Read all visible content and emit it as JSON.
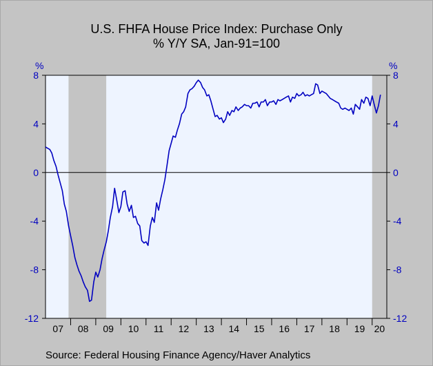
{
  "title": "U.S. FHFA House Price Index: Purchase Only",
  "subtitle": "% Y/Y     SA, Jan-91=100",
  "source": "Source:  Federal Housing Finance Agency/Haver Analytics",
  "chart_data": {
    "type": "line",
    "title": "U.S. FHFA House Price Index: Purchase Only",
    "subtitle": "% Y/Y     SA, Jan-91=100",
    "left_unit": "%",
    "right_unit": "%",
    "ylim": [
      -12,
      8
    ],
    "yticks": [
      8,
      4,
      0,
      -4,
      -8,
      -12
    ],
    "xlim": [
      2007.0,
      2020.583
    ],
    "xtick_labels": [
      "07",
      "08",
      "09",
      "10",
      "11",
      "12",
      "13",
      "14",
      "15",
      "16",
      "17",
      "18",
      "19",
      "20"
    ],
    "grid": false,
    "zero_line": true,
    "recessions": [
      [
        2007.917,
        2009.417
      ],
      [
        2020.0,
        2020.583
      ]
    ],
    "colors": {
      "line": "#0000c0",
      "plot_bg": "#eef4ff",
      "recession": "#c4c4c4",
      "axis_text": "#0000c0"
    },
    "series": [
      {
        "points": [
          [
            2007.0,
            2.1
          ],
          [
            2007.08,
            2.0
          ],
          [
            2007.17,
            1.9
          ],
          [
            2007.25,
            1.6
          ],
          [
            2007.33,
            1.0
          ],
          [
            2007.42,
            0.5
          ],
          [
            2007.5,
            -0.2
          ],
          [
            2007.58,
            -0.8
          ],
          [
            2007.67,
            -1.5
          ],
          [
            2007.75,
            -2.6
          ],
          [
            2007.83,
            -3.2
          ],
          [
            2007.92,
            -4.4
          ],
          [
            2008.0,
            -5.2
          ],
          [
            2008.08,
            -6.0
          ],
          [
            2008.17,
            -7.0
          ],
          [
            2008.25,
            -7.6
          ],
          [
            2008.33,
            -8.1
          ],
          [
            2008.42,
            -8.5
          ],
          [
            2008.5,
            -9.0
          ],
          [
            2008.58,
            -9.4
          ],
          [
            2008.67,
            -9.7
          ],
          [
            2008.75,
            -10.6
          ],
          [
            2008.83,
            -10.5
          ],
          [
            2008.92,
            -9.0
          ],
          [
            2009.0,
            -8.2
          ],
          [
            2009.08,
            -8.6
          ],
          [
            2009.17,
            -8.0
          ],
          [
            2009.25,
            -7.1
          ],
          [
            2009.33,
            -6.4
          ],
          [
            2009.42,
            -5.7
          ],
          [
            2009.5,
            -4.8
          ],
          [
            2009.58,
            -3.7
          ],
          [
            2009.67,
            -2.8
          ],
          [
            2009.75,
            -1.3
          ],
          [
            2009.83,
            -2.2
          ],
          [
            2009.92,
            -3.3
          ],
          [
            2010.0,
            -2.8
          ],
          [
            2010.08,
            -1.6
          ],
          [
            2010.17,
            -1.5
          ],
          [
            2010.25,
            -2.6
          ],
          [
            2010.33,
            -3.2
          ],
          [
            2010.42,
            -2.7
          ],
          [
            2010.5,
            -3.7
          ],
          [
            2010.58,
            -3.6
          ],
          [
            2010.67,
            -4.2
          ],
          [
            2010.75,
            -4.4
          ],
          [
            2010.83,
            -5.6
          ],
          [
            2010.92,
            -5.8
          ],
          [
            2011.0,
            -5.7
          ],
          [
            2011.08,
            -6.0
          ],
          [
            2011.17,
            -4.4
          ],
          [
            2011.25,
            -3.7
          ],
          [
            2011.33,
            -4.1
          ],
          [
            2011.42,
            -2.5
          ],
          [
            2011.5,
            -3.1
          ],
          [
            2011.58,
            -2.2
          ],
          [
            2011.67,
            -1.4
          ],
          [
            2011.75,
            -0.6
          ],
          [
            2011.83,
            0.5
          ],
          [
            2011.92,
            1.8
          ],
          [
            2012.0,
            2.4
          ],
          [
            2012.08,
            3.0
          ],
          [
            2012.17,
            2.9
          ],
          [
            2012.25,
            3.5
          ],
          [
            2012.33,
            4.0
          ],
          [
            2012.42,
            4.8
          ],
          [
            2012.5,
            5.0
          ],
          [
            2012.58,
            5.4
          ],
          [
            2012.67,
            6.5
          ],
          [
            2012.75,
            6.8
          ],
          [
            2012.83,
            6.9
          ],
          [
            2012.92,
            7.1
          ],
          [
            2013.0,
            7.4
          ],
          [
            2013.08,
            7.6
          ],
          [
            2013.17,
            7.4
          ],
          [
            2013.25,
            7.0
          ],
          [
            2013.33,
            6.8
          ],
          [
            2013.42,
            6.3
          ],
          [
            2013.5,
            6.4
          ],
          [
            2013.58,
            5.9
          ],
          [
            2013.67,
            5.2
          ],
          [
            2013.75,
            4.6
          ],
          [
            2013.83,
            4.7
          ],
          [
            2013.92,
            4.4
          ],
          [
            2014.0,
            4.5
          ],
          [
            2014.08,
            4.1
          ],
          [
            2014.17,
            4.4
          ],
          [
            2014.25,
            5.0
          ],
          [
            2014.33,
            4.7
          ],
          [
            2014.42,
            5.1
          ],
          [
            2014.5,
            5.0
          ],
          [
            2014.58,
            5.4
          ],
          [
            2014.67,
            5.1
          ],
          [
            2014.75,
            5.3
          ],
          [
            2014.83,
            5.4
          ],
          [
            2014.92,
            5.6
          ],
          [
            2015.0,
            5.5
          ],
          [
            2015.08,
            5.5
          ],
          [
            2015.17,
            5.3
          ],
          [
            2015.25,
            5.7
          ],
          [
            2015.33,
            5.7
          ],
          [
            2015.42,
            5.8
          ],
          [
            2015.5,
            5.4
          ],
          [
            2015.58,
            5.8
          ],
          [
            2015.67,
            5.8
          ],
          [
            2015.75,
            6.0
          ],
          [
            2015.83,
            5.5
          ],
          [
            2015.92,
            5.8
          ],
          [
            2016.0,
            5.8
          ],
          [
            2016.08,
            5.9
          ],
          [
            2016.17,
            5.6
          ],
          [
            2016.25,
            6.0
          ],
          [
            2016.33,
            5.9
          ],
          [
            2016.42,
            6.0
          ],
          [
            2016.5,
            6.1
          ],
          [
            2016.58,
            6.2
          ],
          [
            2016.67,
            6.3
          ],
          [
            2016.75,
            5.8
          ],
          [
            2016.83,
            6.2
          ],
          [
            2016.92,
            6.1
          ],
          [
            2017.0,
            6.5
          ],
          [
            2017.08,
            6.3
          ],
          [
            2017.17,
            6.4
          ],
          [
            2017.25,
            6.6
          ],
          [
            2017.33,
            6.3
          ],
          [
            2017.42,
            6.4
          ],
          [
            2017.5,
            6.3
          ],
          [
            2017.58,
            6.4
          ],
          [
            2017.67,
            6.5
          ],
          [
            2017.75,
            7.3
          ],
          [
            2017.83,
            7.2
          ],
          [
            2017.92,
            6.5
          ],
          [
            2018.0,
            6.7
          ],
          [
            2018.08,
            6.6
          ],
          [
            2018.17,
            6.5
          ],
          [
            2018.25,
            6.3
          ],
          [
            2018.33,
            6.1
          ],
          [
            2018.42,
            6.0
          ],
          [
            2018.5,
            5.9
          ],
          [
            2018.58,
            5.8
          ],
          [
            2018.67,
            5.7
          ],
          [
            2018.75,
            5.3
          ],
          [
            2018.83,
            5.2
          ],
          [
            2018.92,
            5.3
          ],
          [
            2019.0,
            5.2
          ],
          [
            2019.08,
            5.1
          ],
          [
            2019.17,
            5.3
          ],
          [
            2019.25,
            4.8
          ],
          [
            2019.33,
            5.6
          ],
          [
            2019.42,
            5.4
          ],
          [
            2019.5,
            5.2
          ],
          [
            2019.58,
            6.0
          ],
          [
            2019.67,
            5.7
          ],
          [
            2019.75,
            6.2
          ],
          [
            2019.83,
            6.1
          ],
          [
            2019.92,
            5.5
          ],
          [
            2020.0,
            6.3
          ],
          [
            2020.08,
            5.6
          ],
          [
            2020.17,
            4.9
          ],
          [
            2020.25,
            5.5
          ],
          [
            2020.33,
            6.4
          ]
        ]
      }
    ]
  }
}
